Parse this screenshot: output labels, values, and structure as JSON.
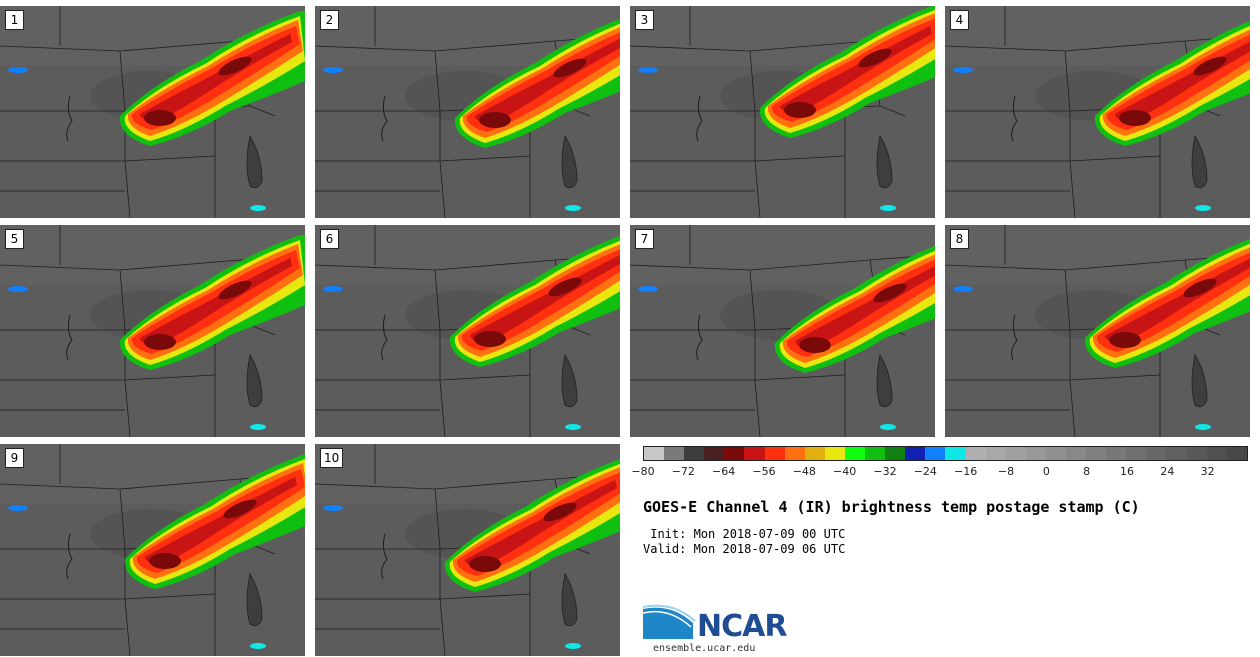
{
  "panels": [
    {
      "label": "1"
    },
    {
      "label": "2"
    },
    {
      "label": "3"
    },
    {
      "label": "4"
    },
    {
      "label": "5"
    },
    {
      "label": "6"
    },
    {
      "label": "7"
    },
    {
      "label": "8"
    },
    {
      "label": "9"
    },
    {
      "label": "10"
    }
  ],
  "colorbar": {
    "colors": [
      "#c8c8c8",
      "#7a7a7a",
      "#3c3c3c",
      "#4a2020",
      "#7a0a0a",
      "#c81414",
      "#ff3010",
      "#ff7010",
      "#e0b010",
      "#e8e810",
      "#10ff10",
      "#10c010",
      "#108010",
      "#1020b0",
      "#1080ff",
      "#10e8e8",
      "#b0b0b0",
      "#a8a8a8",
      "#a0a0a0",
      "#989898",
      "#909090",
      "#888888",
      "#808080",
      "#787878",
      "#707070",
      "#686868",
      "#606060",
      "#585858",
      "#505050",
      "#484848"
    ],
    "ticks": [
      "−80",
      "−72",
      "−64",
      "−56",
      "−48",
      "−40",
      "−32",
      "−24",
      "−16",
      "−8",
      "0",
      "8",
      "16",
      "24",
      "32"
    ]
  },
  "title": "GOES-E Channel 4 (IR) brightness temp postage stamp (C)",
  "init_line": " Init: Mon 2018-07-09 00 UTC",
  "valid_line": "Valid: Mon 2018-07-09 06 UTC",
  "logo": {
    "text": "NCAR",
    "color": "#1f4c92",
    "accent": "#1f86c8"
  },
  "url": "ensemble.ucar.edu"
}
